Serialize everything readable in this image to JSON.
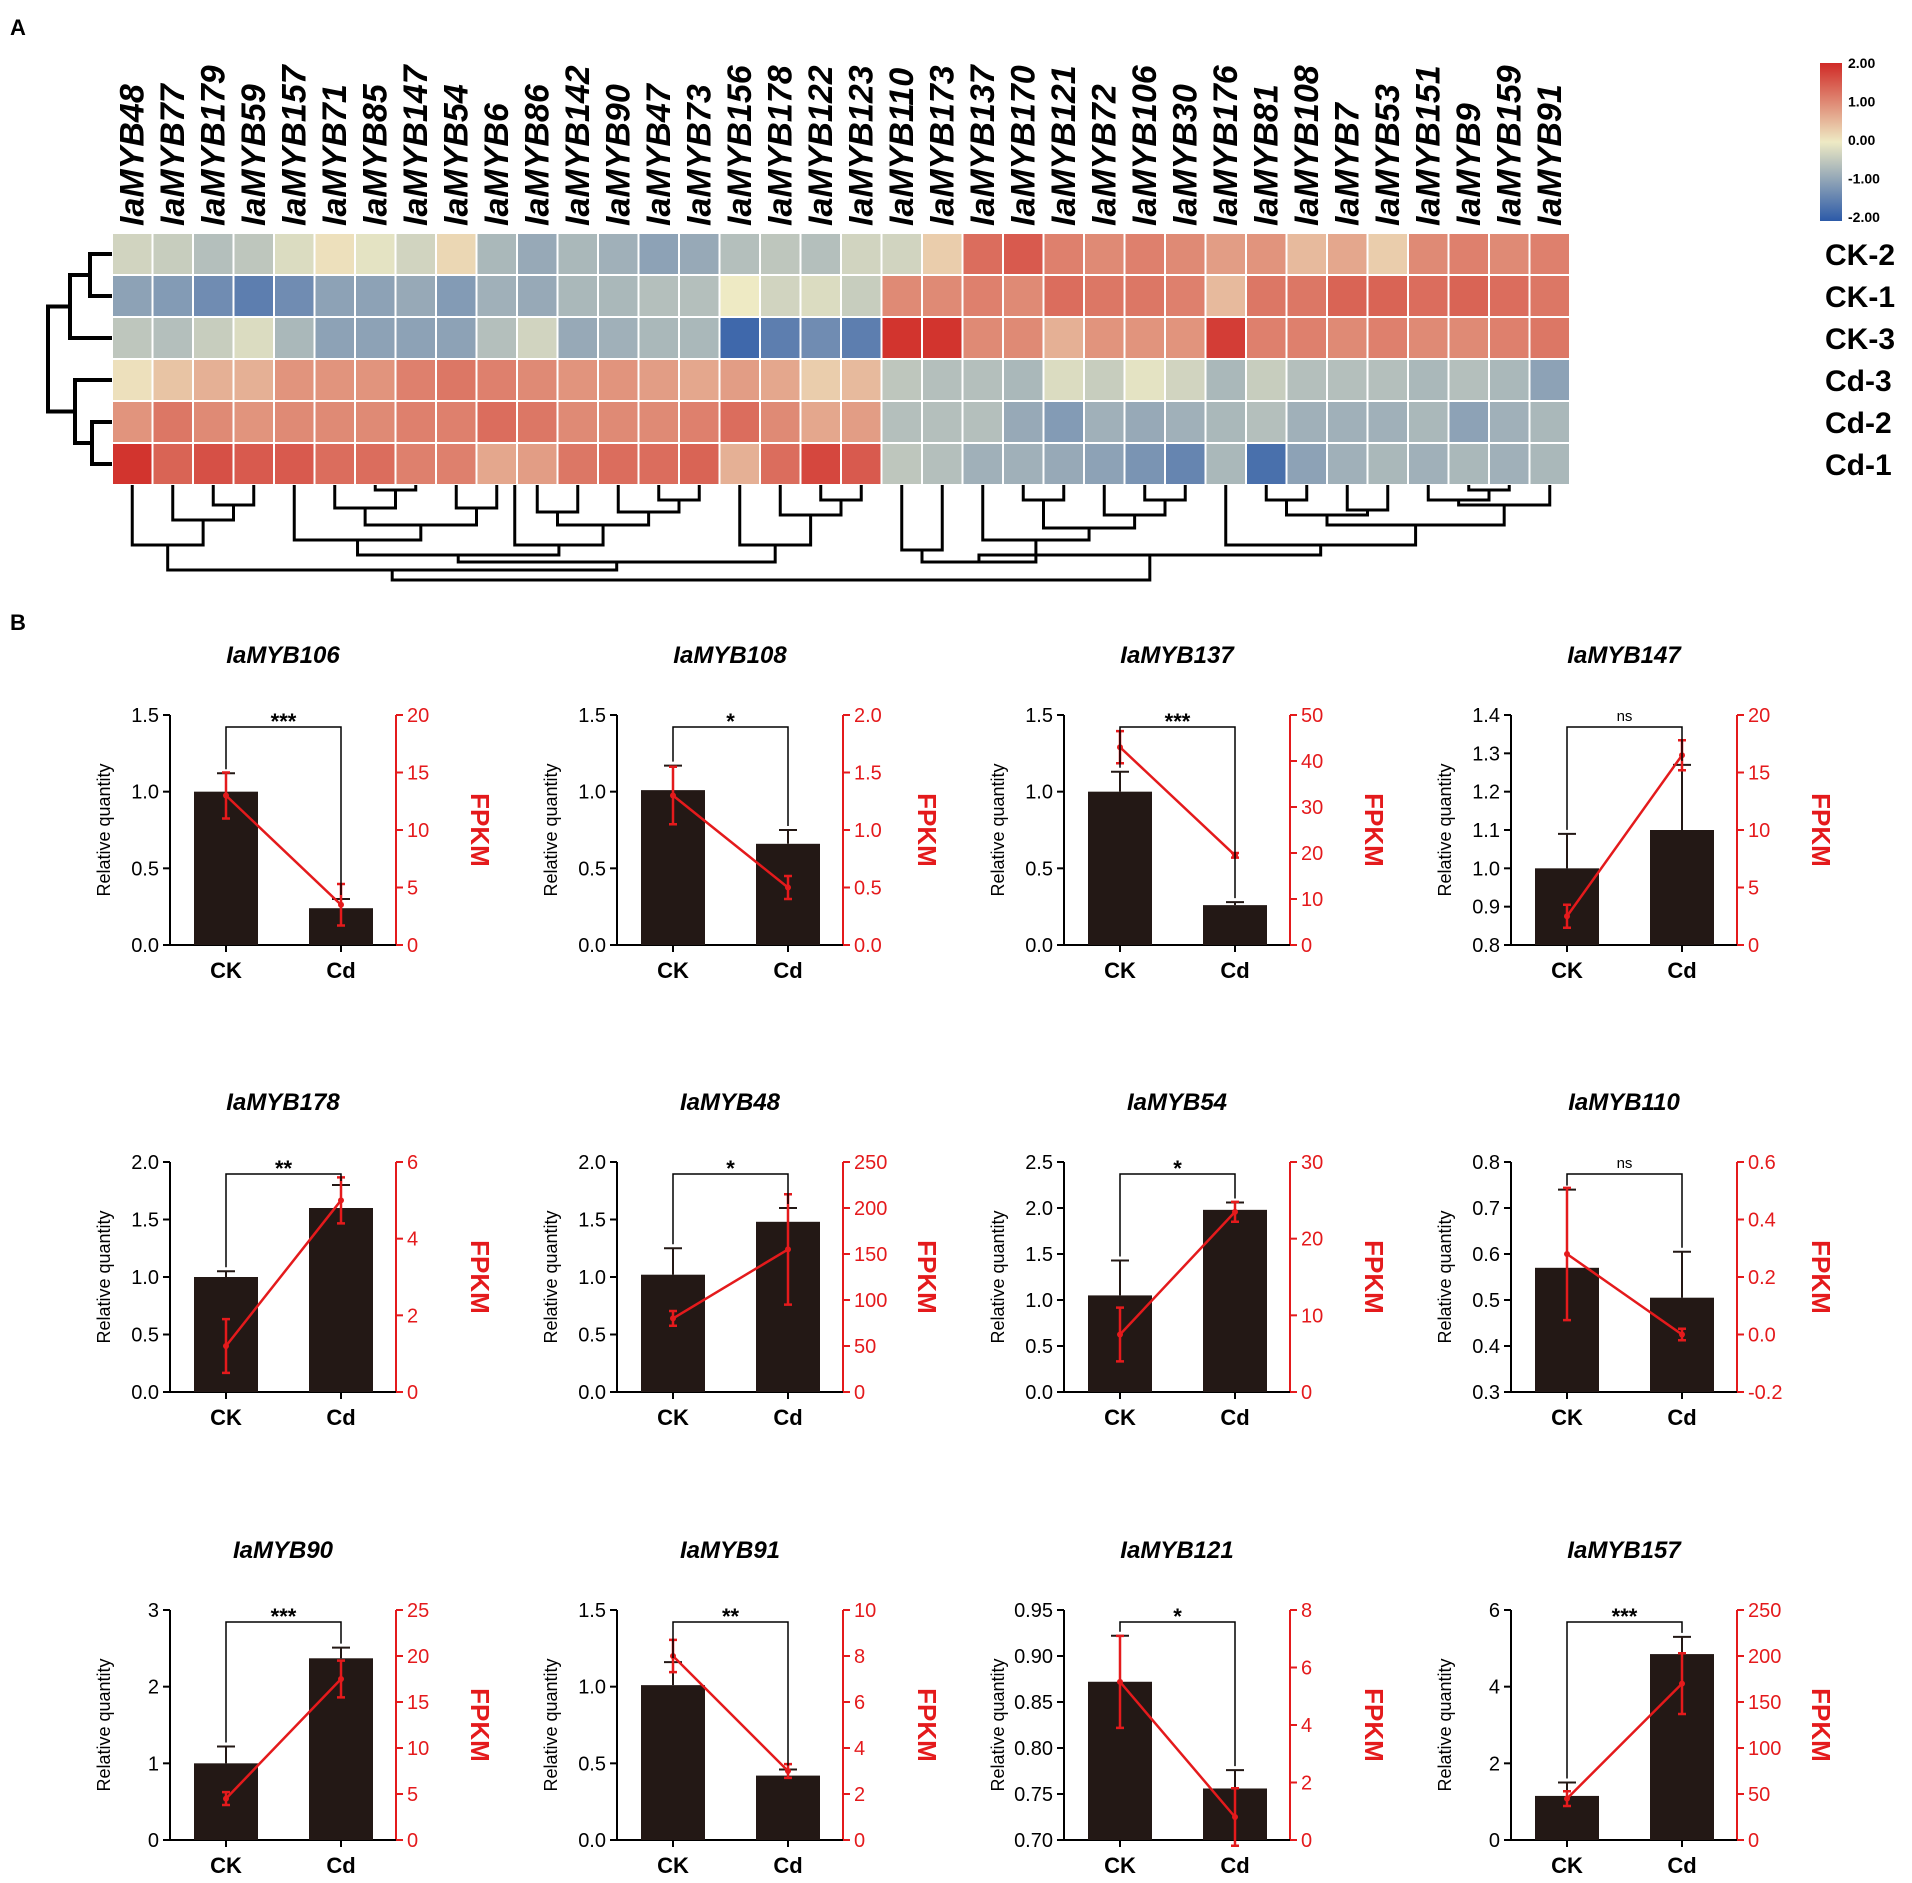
{
  "panel_labels": {
    "a": "A",
    "b": "B"
  },
  "heatmap": {
    "genes": [
      "IaMYB48",
      "IaMYB77",
      "IaMYB179",
      "IaMYB59",
      "IaMYB157",
      "IaMYB71",
      "IaMYB85",
      "IaMYB147",
      "IaMYB54",
      "IaMYB6",
      "IaMYB86",
      "IaMYB142",
      "IaMYB90",
      "IaMYB47",
      "IaMYB73",
      "IaMYB156",
      "IaMYB178",
      "IaMYB122",
      "IaMYB123",
      "IaMYB110",
      "IaMYB173",
      "IaMYB137",
      "IaMYB170",
      "IaMYB121",
      "IaMYB72",
      "IaMYB106",
      "IaMYB30",
      "IaMYB176",
      "IaMYB81",
      "IaMYB108",
      "IaMYB7",
      "IaMYB53",
      "IaMYB151",
      "IaMYB9",
      "IaMYB159",
      "IaMYB91"
    ],
    "samples": [
      "CK-2",
      "CK-1",
      "CK-3",
      "Cd-3",
      "Cd-2",
      "Cd-1"
    ],
    "legend_ticks": [
      "2.00",
      "1.00",
      "0.00",
      "-1.00",
      "-2.00"
    ],
    "color_scale": {
      "low": "#2c5aa8",
      "mid": "#eeeac4",
      "high": "#d02a26"
    },
    "values": [
      [
        -0.3,
        -0.4,
        -0.6,
        -0.5,
        -0.2,
        0.1,
        -0.1,
        -0.3,
        0.2,
        -0.7,
        -0.9,
        -0.7,
        -0.8,
        -1.0,
        -0.9,
        -0.6,
        -0.5,
        -0.6,
        -0.3,
        -0.3,
        0.3,
        1.3,
        1.5,
        1.1,
        1.0,
        1.1,
        1.0,
        0.8,
        0.9,
        0.5,
        0.7,
        0.3,
        1.0,
        1.1,
        1.0,
        1.1
      ],
      [
        -1.0,
        -1.1,
        -1.3,
        -1.5,
        -1.3,
        -1.0,
        -1.0,
        -0.9,
        -1.1,
        -0.8,
        -0.9,
        -0.7,
        -0.7,
        -0.6,
        -0.6,
        0.0,
        -0.3,
        -0.2,
        -0.4,
        1.0,
        1.0,
        1.1,
        1.0,
        1.3,
        1.2,
        1.2,
        1.1,
        0.5,
        1.2,
        1.2,
        1.4,
        1.4,
        1.3,
        1.4,
        1.3,
        1.2
      ],
      [
        -0.5,
        -0.6,
        -0.4,
        -0.2,
        -0.7,
        -1.0,
        -1.0,
        -1.0,
        -1.0,
        -0.6,
        -0.3,
        -0.9,
        -0.8,
        -0.7,
        -0.7,
        -1.8,
        -1.5,
        -1.3,
        -1.5,
        1.9,
        1.9,
        1.0,
        1.0,
        0.6,
        0.9,
        0.9,
        0.9,
        1.8,
        1.1,
        1.1,
        1.0,
        1.1,
        1.0,
        1.0,
        1.1,
        1.2
      ],
      [
        0.1,
        0.4,
        0.6,
        0.6,
        0.9,
        0.9,
        0.9,
        1.1,
        1.2,
        1.1,
        1.0,
        0.9,
        0.9,
        0.8,
        0.7,
        0.8,
        0.7,
        0.3,
        0.5,
        -0.5,
        -0.6,
        -0.6,
        -0.7,
        -0.2,
        -0.4,
        -0.1,
        -0.3,
        -0.7,
        -0.4,
        -0.6,
        -0.6,
        -0.6,
        -0.7,
        -0.6,
        -0.7,
        -1.0
      ],
      [
        0.9,
        1.2,
        1.0,
        0.9,
        1.0,
        1.0,
        1.0,
        1.1,
        1.1,
        1.3,
        1.2,
        1.0,
        1.0,
        1.0,
        1.1,
        1.3,
        1.0,
        0.7,
        0.8,
        -0.6,
        -0.6,
        -0.6,
        -0.9,
        -1.1,
        -0.8,
        -0.9,
        -0.8,
        -0.7,
        -0.6,
        -0.8,
        -0.8,
        -0.8,
        -0.7,
        -1.0,
        -0.8,
        -0.7
      ],
      [
        1.9,
        1.4,
        1.6,
        1.5,
        1.5,
        1.3,
        1.3,
        1.1,
        1.1,
        0.7,
        0.8,
        1.2,
        1.3,
        1.3,
        1.4,
        0.6,
        1.3,
        1.7,
        1.5,
        -0.5,
        -0.6,
        -0.8,
        -0.8,
        -0.9,
        -1.0,
        -1.2,
        -1.4,
        -0.7,
        -1.7,
        -1.0,
        -0.8,
        -0.7,
        -0.8,
        -0.7,
        -0.8,
        -0.7
      ]
    ]
  },
  "chart_data": [
    {
      "type": "bar+line",
      "title": "IaMYB106",
      "categories": [
        "CK",
        "Cd"
      ],
      "ylabel": "Relative quantity",
      "y2label": "FPKM",
      "ylim": [
        0,
        1.5
      ],
      "yticks": [
        "0.0",
        "0.5",
        "1.0",
        "1.5"
      ],
      "y2lim": [
        0,
        20
      ],
      "y2ticks": [
        "0",
        "5",
        "10",
        "15",
        "20"
      ],
      "bars": [
        1.0,
        0.24
      ],
      "bar_err": [
        0.12,
        0.06
      ],
      "line": [
        13,
        3.5
      ],
      "line_err": [
        2,
        1.8
      ],
      "significance": "***"
    },
    {
      "type": "bar+line",
      "title": "IaMYB108",
      "categories": [
        "CK",
        "Cd"
      ],
      "ylabel": "Relative quantity",
      "y2label": "FPKM",
      "ylim": [
        0,
        1.5
      ],
      "yticks": [
        "0.0",
        "0.5",
        "1.0",
        "1.5"
      ],
      "y2lim": [
        0,
        2
      ],
      "y2ticks": [
        "0.0",
        "0.5",
        "1.0",
        "1.5",
        "2.0"
      ],
      "bars": [
        1.01,
        0.66
      ],
      "bar_err": [
        0.16,
        0.09
      ],
      "line": [
        1.3,
        0.5
      ],
      "line_err": [
        0.25,
        0.1
      ],
      "significance": "*"
    },
    {
      "type": "bar+line",
      "title": "IaMYB137",
      "categories": [
        "CK",
        "Cd"
      ],
      "ylabel": "Relative quantity",
      "y2label": "FPKM",
      "ylim": [
        0,
        1.5
      ],
      "yticks": [
        "0.0",
        "0.5",
        "1.0",
        "1.5"
      ],
      "y2lim": [
        0,
        50
      ],
      "y2ticks": [
        "0",
        "10",
        "20",
        "30",
        "40",
        "50"
      ],
      "bars": [
        1.0,
        0.26
      ],
      "bar_err": [
        0.13,
        0.02
      ],
      "line": [
        43,
        19.5
      ],
      "line_err": [
        3.5,
        0.5
      ],
      "significance": "***"
    },
    {
      "type": "bar+line",
      "title": "IaMYB147",
      "categories": [
        "CK",
        "Cd"
      ],
      "ylabel": "Relative quantity",
      "y2label": "FPKM",
      "ylim": [
        0.8,
        1.4
      ],
      "yticks": [
        "0.8",
        "0.9",
        "1.0",
        "1.1",
        "1.2",
        "1.3",
        "1.4"
      ],
      "y2lim": [
        0,
        20
      ],
      "y2ticks": [
        "0",
        "5",
        "10",
        "15",
        "20"
      ],
      "bars": [
        1.0,
        1.1
      ],
      "bar_err": [
        0.09,
        0.17
      ],
      "line": [
        2.5,
        16.5
      ],
      "line_err": [
        1,
        1.3
      ],
      "significance": "ns"
    },
    {
      "type": "bar+line",
      "title": "IaMYB178",
      "categories": [
        "CK",
        "Cd"
      ],
      "ylabel": "Relative quantity",
      "y2label": "FPKM",
      "ylim": [
        0,
        2
      ],
      "yticks": [
        "0.0",
        "0.5",
        "1.0",
        "1.5",
        "2.0"
      ],
      "y2lim": [
        0,
        6
      ],
      "y2ticks": [
        "0",
        "2",
        "4",
        "6"
      ],
      "bars": [
        1.0,
        1.6
      ],
      "bar_err": [
        0.05,
        0.2
      ],
      "line": [
        1.2,
        5.0
      ],
      "line_err": [
        0.7,
        0.6
      ],
      "significance": "**"
    },
    {
      "type": "bar+line",
      "title": "IaMYB48",
      "categories": [
        "CK",
        "Cd"
      ],
      "ylabel": "Relative quantity",
      "y2label": "FPKM",
      "ylim": [
        0,
        2
      ],
      "yticks": [
        "0.0",
        "0.5",
        "1.0",
        "1.5",
        "2.0"
      ],
      "y2lim": [
        0,
        250
      ],
      "y2ticks": [
        "0",
        "50",
        "100",
        "150",
        "200",
        "250"
      ],
      "bars": [
        1.02,
        1.48
      ],
      "bar_err": [
        0.23,
        0.12
      ],
      "line": [
        80,
        155
      ],
      "line_err": [
        8,
        60
      ],
      "significance": "*"
    },
    {
      "type": "bar+line",
      "title": "IaMYB54",
      "categories": [
        "CK",
        "Cd"
      ],
      "ylabel": "Relative quantity",
      "y2label": "FPKM",
      "ylim": [
        0,
        2.5
      ],
      "yticks": [
        "0.0",
        "0.5",
        "1.0",
        "1.5",
        "2.0",
        "2.5"
      ],
      "y2lim": [
        0,
        30
      ],
      "y2ticks": [
        "0",
        "10",
        "20",
        "30"
      ],
      "bars": [
        1.05,
        1.98
      ],
      "bar_err": [
        0.38,
        0.08
      ],
      "line": [
        7.5,
        23.5
      ],
      "line_err": [
        3.5,
        1.3
      ],
      "significance": "*"
    },
    {
      "type": "bar+line",
      "title": "IaMYB110",
      "categories": [
        "CK",
        "Cd"
      ],
      "ylabel": "Relative quantity",
      "y2label": "FPKM",
      "ylim": [
        0.3,
        0.8
      ],
      "yticks": [
        "0.3",
        "0.4",
        "0.5",
        "0.6",
        "0.7",
        "0.8"
      ],
      "y2lim": [
        -0.2,
        0.6
      ],
      "y2ticks": [
        "-0.2",
        "0.0",
        "0.2",
        "0.4",
        "0.6"
      ],
      "bars": [
        0.57,
        0.505
      ],
      "bar_err": [
        0.17,
        0.1
      ],
      "line": [
        0.28,
        0.0
      ],
      "line_err": [
        0.23,
        0.02
      ],
      "significance": "ns"
    },
    {
      "type": "bar+line",
      "title": "IaMYB90",
      "categories": [
        "CK",
        "Cd"
      ],
      "ylabel": "Relative quantity",
      "y2label": "FPKM",
      "ylim": [
        0,
        3
      ],
      "yticks": [
        "0",
        "1",
        "2",
        "3"
      ],
      "y2lim": [
        0,
        25
      ],
      "y2ticks": [
        "0",
        "5",
        "10",
        "15",
        "20",
        "25"
      ],
      "bars": [
        1.0,
        2.37
      ],
      "bar_err": [
        0.22,
        0.14
      ],
      "line": [
        4.5,
        17.5
      ],
      "line_err": [
        0.7,
        2.0
      ],
      "significance": "***"
    },
    {
      "type": "bar+line",
      "title": "IaMYB91",
      "categories": [
        "CK",
        "Cd"
      ],
      "ylabel": "Relative quantity",
      "y2label": "FPKM",
      "ylim": [
        0,
        1.5
      ],
      "yticks": [
        "0.0",
        "0.5",
        "1.0",
        "1.5"
      ],
      "y2lim": [
        0,
        10
      ],
      "y2ticks": [
        "0",
        "2",
        "4",
        "6",
        "8",
        "10"
      ],
      "bars": [
        1.01,
        0.42
      ],
      "bar_err": [
        0.15,
        0.04
      ],
      "line": [
        8.0,
        3.0
      ],
      "line_err": [
        0.7,
        0.3
      ],
      "significance": "**"
    },
    {
      "type": "bar+line",
      "title": "IaMYB121",
      "categories": [
        "CK",
        "Cd"
      ],
      "ylabel": "Relative quantity",
      "y2label": "FPKM",
      "ylim": [
        0.7,
        0.95
      ],
      "yticks": [
        "0.70",
        "0.75",
        "0.80",
        "0.85",
        "0.90",
        "0.95"
      ],
      "y2lim": [
        0,
        8
      ],
      "y2ticks": [
        "0",
        "2",
        "4",
        "6",
        "8"
      ],
      "bars": [
        0.872,
        0.756
      ],
      "bar_err": [
        0.05,
        0.02
      ],
      "line": [
        5.5,
        0.8
      ],
      "line_err": [
        1.6,
        1.0
      ],
      "significance": "*"
    },
    {
      "type": "bar+line",
      "title": "IaMYB157",
      "categories": [
        "CK",
        "Cd"
      ],
      "ylabel": "Relative quantity",
      "y2label": "FPKM",
      "ylim": [
        0,
        6
      ],
      "yticks": [
        "0",
        "2",
        "4",
        "6"
      ],
      "bars": [
        1.15,
        4.85
      ],
      "bar_err": [
        0.35,
        0.45
      ],
      "y2lim": [
        0,
        250
      ],
      "y2ticks": [
        "0",
        "50",
        "100",
        "150",
        "200",
        "250"
      ],
      "line": [
        45,
        170
      ],
      "line_err": [
        8,
        33
      ],
      "significance": "***"
    }
  ]
}
